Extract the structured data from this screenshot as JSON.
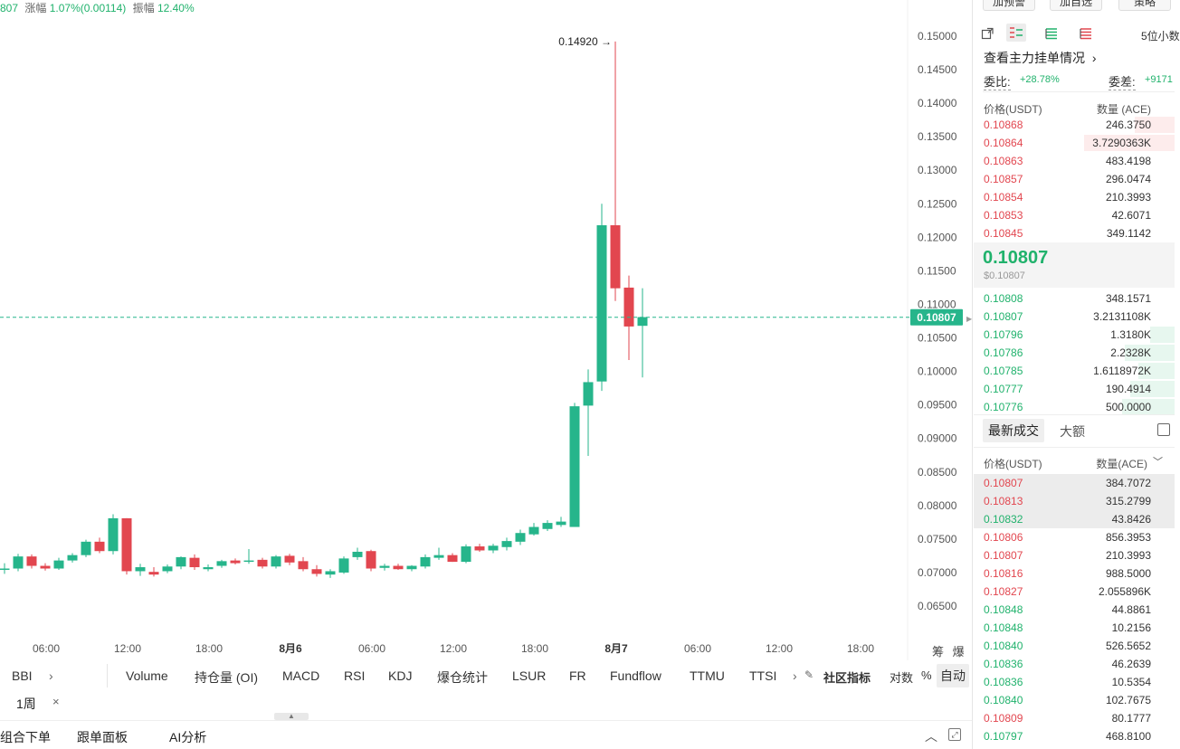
{
  "top_info": {
    "price_fragment": "807",
    "change_label": "涨幅",
    "change_value": "1.07%(0.00114)",
    "amplitude_label": "振幅",
    "amplitude_value": "12.40%"
  },
  "chart_data": {
    "type": "candlestick",
    "y_ticks": [
      "0.15000",
      "0.14500",
      "0.14000",
      "0.13500",
      "0.13000",
      "0.12500",
      "0.12000",
      "0.11500",
      "0.11000",
      "0.10500",
      "0.10000",
      "0.09500",
      "0.09000",
      "0.08500",
      "0.08000",
      "0.07500",
      "0.07000",
      "0.06500"
    ],
    "ylim": [
      0.0625,
      0.1522
    ],
    "x_ticks": [
      "06:00",
      "12:00",
      "18:00",
      "8月6",
      "06:00",
      "12:00",
      "18:00",
      "8月7",
      "06:00",
      "12:00",
      "18:00"
    ],
    "bold_x_ticks": [
      "8月6",
      "8月7"
    ],
    "last_price_label": "0.10807",
    "high_marker": "0.14920",
    "candles": [
      {
        "o": 0.0704,
        "h": 0.0714,
        "l": 0.0698,
        "c": 0.0706
      },
      {
        "o": 0.0706,
        "h": 0.0728,
        "l": 0.0702,
        "c": 0.0724
      },
      {
        "o": 0.0724,
        "h": 0.0727,
        "l": 0.0706,
        "c": 0.071
      },
      {
        "o": 0.071,
        "h": 0.0714,
        "l": 0.0703,
        "c": 0.0706
      },
      {
        "o": 0.0706,
        "h": 0.0722,
        "l": 0.0704,
        "c": 0.0718
      },
      {
        "o": 0.0718,
        "h": 0.0729,
        "l": 0.0715,
        "c": 0.0726
      },
      {
        "o": 0.0726,
        "h": 0.0749,
        "l": 0.0723,
        "c": 0.0746
      },
      {
        "o": 0.0746,
        "h": 0.0752,
        "l": 0.0729,
        "c": 0.0732
      },
      {
        "o": 0.0732,
        "h": 0.0787,
        "l": 0.0727,
        "c": 0.0781
      },
      {
        "o": 0.0781,
        "h": 0.0781,
        "l": 0.0697,
        "c": 0.0702
      },
      {
        "o": 0.0702,
        "h": 0.0713,
        "l": 0.0695,
        "c": 0.0708
      },
      {
        "o": 0.0701,
        "h": 0.0708,
        "l": 0.0694,
        "c": 0.0697
      },
      {
        "o": 0.0702,
        "h": 0.0712,
        "l": 0.0699,
        "c": 0.0709
      },
      {
        "o": 0.0709,
        "h": 0.0724,
        "l": 0.0705,
        "c": 0.0723
      },
      {
        "o": 0.0722,
        "h": 0.0727,
        "l": 0.0704,
        "c": 0.0708
      },
      {
        "o": 0.0705,
        "h": 0.0712,
        "l": 0.0702,
        "c": 0.0708
      },
      {
        "o": 0.071,
        "h": 0.0719,
        "l": 0.0707,
        "c": 0.0717
      },
      {
        "o": 0.0718,
        "h": 0.0721,
        "l": 0.0712,
        "c": 0.0714
      },
      {
        "o": 0.0716,
        "h": 0.0735,
        "l": 0.0713,
        "c": 0.0718
      },
      {
        "o": 0.0719,
        "h": 0.0722,
        "l": 0.0706,
        "c": 0.0709
      },
      {
        "o": 0.0709,
        "h": 0.0726,
        "l": 0.0706,
        "c": 0.0724
      },
      {
        "o": 0.0725,
        "h": 0.0728,
        "l": 0.0711,
        "c": 0.0715
      },
      {
        "o": 0.0717,
        "h": 0.0723,
        "l": 0.0702,
        "c": 0.0705
      },
      {
        "o": 0.0705,
        "h": 0.0711,
        "l": 0.0694,
        "c": 0.0698
      },
      {
        "o": 0.0697,
        "h": 0.0705,
        "l": 0.0692,
        "c": 0.0702
      },
      {
        "o": 0.07,
        "h": 0.0724,
        "l": 0.0698,
        "c": 0.0721
      },
      {
        "o": 0.0723,
        "h": 0.0737,
        "l": 0.0719,
        "c": 0.0731
      },
      {
        "o": 0.0732,
        "h": 0.0734,
        "l": 0.0702,
        "c": 0.0706
      },
      {
        "o": 0.0707,
        "h": 0.0713,
        "l": 0.0703,
        "c": 0.071
      },
      {
        "o": 0.071,
        "h": 0.0713,
        "l": 0.0704,
        "c": 0.0705
      },
      {
        "o": 0.0705,
        "h": 0.0711,
        "l": 0.0702,
        "c": 0.071
      },
      {
        "o": 0.0709,
        "h": 0.0727,
        "l": 0.0706,
        "c": 0.0723
      },
      {
        "o": 0.0722,
        "h": 0.0737,
        "l": 0.0719,
        "c": 0.0726
      },
      {
        "o": 0.0726,
        "h": 0.0729,
        "l": 0.0716,
        "c": 0.0716
      },
      {
        "o": 0.0716,
        "h": 0.0742,
        "l": 0.0714,
        "c": 0.0739
      },
      {
        "o": 0.0739,
        "h": 0.0743,
        "l": 0.0731,
        "c": 0.0733
      },
      {
        "o": 0.0733,
        "h": 0.0743,
        "l": 0.0729,
        "c": 0.074
      },
      {
        "o": 0.0738,
        "h": 0.0752,
        "l": 0.0733,
        "c": 0.0747
      },
      {
        "o": 0.0746,
        "h": 0.0764,
        "l": 0.0741,
        "c": 0.0759
      },
      {
        "o": 0.0757,
        "h": 0.0774,
        "l": 0.0755,
        "c": 0.0768
      },
      {
        "o": 0.0765,
        "h": 0.0778,
        "l": 0.0762,
        "c": 0.0774
      },
      {
        "o": 0.0771,
        "h": 0.0783,
        "l": 0.0768,
        "c": 0.0776
      },
      {
        "o": 0.0768,
        "h": 0.0953,
        "l": 0.0768,
        "c": 0.0948
      },
      {
        "o": 0.0949,
        "h": 0.1003,
        "l": 0.0874,
        "c": 0.0984
      },
      {
        "o": 0.0985,
        "h": 0.125,
        "l": 0.0971,
        "c": 0.1218
      },
      {
        "o": 0.1218,
        "h": 0.1492,
        "l": 0.1105,
        "c": 0.1124
      },
      {
        "o": 0.1125,
        "h": 0.1143,
        "l": 0.1017,
        "c": 0.1067
      },
      {
        "o": 0.1068,
        "h": 0.1124,
        "l": 0.0991,
        "c": 0.1081
      }
    ],
    "grid": false
  },
  "axis_corner": [
    "筹",
    "爆"
  ],
  "indicators": [
    "BBI",
    "Volume",
    "持仓量 (OI)",
    "MACD",
    "RSI",
    "KDJ",
    "爆仓统计",
    "LSUR",
    "FR",
    "Fundflow",
    "TTMU",
    "TTSI"
  ],
  "indicator_extra": {
    "community": "社区指标",
    "log": "对数",
    "pct": "%",
    "auto": "自动"
  },
  "period": {
    "label": "1周",
    "close": "×"
  },
  "bottom_tabs": [
    "组合下单",
    "跟单面板",
    "AI分析"
  ],
  "panel": {
    "top_buttons": [
      "加预警",
      "加自选",
      "策略"
    ],
    "decimals": "5位小数",
    "main_orders": "查看主力挂单情况",
    "bid_ratio_label": "委比:",
    "bid_ratio": "+28.78%",
    "bid_diff_label": "委差:",
    "bid_diff": "+9171",
    "ob_header": {
      "price": "价格(USDT)",
      "qty": "数量 (ACE)"
    },
    "asks": [
      {
        "price": "0.10868",
        "qty": "246.3750",
        "depth": 0.2
      },
      {
        "price": "0.10864",
        "qty": "3.7290363K",
        "depth": 0.45
      },
      {
        "price": "0.10863",
        "qty": "483.4198",
        "depth": 0
      },
      {
        "price": "0.10857",
        "qty": "296.0474",
        "depth": 0
      },
      {
        "price": "0.10854",
        "qty": "210.3993",
        "depth": 0
      },
      {
        "price": "0.10853",
        "qty": "42.6071",
        "depth": 0
      },
      {
        "price": "0.10845",
        "qty": "349.1142",
        "depth": 0
      }
    ],
    "last_price": "0.10807",
    "last_price_usd": "$0.10807",
    "bids": [
      {
        "price": "0.10808",
        "qty": "348.1571",
        "depth": 0
      },
      {
        "price": "0.10807",
        "qty": "3.2131108K",
        "depth": 0
      },
      {
        "price": "0.10796",
        "qty": "1.3180K",
        "depth": 0.12
      },
      {
        "price": "0.10786",
        "qty": "2.2328K",
        "depth": 0.25
      },
      {
        "price": "0.10785",
        "qty": "1.6118972K",
        "depth": 0.18
      },
      {
        "price": "0.10777",
        "qty": "190.4914",
        "depth": 0.22
      },
      {
        "price": "0.10776",
        "qty": "500.0000",
        "depth": 0.26
      }
    ],
    "trade_tabs": [
      "最新成交",
      "大额"
    ],
    "trade_header": {
      "price": "价格(USDT)",
      "qty": "数量(ACE)"
    },
    "trades": [
      {
        "price": "0.10807",
        "qty": "384.7072",
        "side": "sell",
        "hl": true
      },
      {
        "price": "0.10813",
        "qty": "315.2799",
        "side": "sell",
        "hl": true
      },
      {
        "price": "0.10832",
        "qty": "43.8426",
        "side": "buy",
        "hl": true
      },
      {
        "price": "0.10806",
        "qty": "856.3953",
        "side": "sell",
        "hl": false
      },
      {
        "price": "0.10807",
        "qty": "210.3993",
        "side": "sell",
        "hl": false
      },
      {
        "price": "0.10816",
        "qty": "988.5000",
        "side": "sell",
        "hl": false
      },
      {
        "price": "0.10827",
        "qty": "2.055896K",
        "side": "sell",
        "hl": false
      },
      {
        "price": "0.10848",
        "qty": "44.8861",
        "side": "buy",
        "hl": false
      },
      {
        "price": "0.10848",
        "qty": "10.2156",
        "side": "buy",
        "hl": false
      },
      {
        "price": "0.10840",
        "qty": "526.5652",
        "side": "buy",
        "hl": false
      },
      {
        "price": "0.10836",
        "qty": "46.2639",
        "side": "buy",
        "hl": false
      },
      {
        "price": "0.10836",
        "qty": "10.5354",
        "side": "buy",
        "hl": false
      },
      {
        "price": "0.10840",
        "qty": "102.7675",
        "side": "buy",
        "hl": false
      },
      {
        "price": "0.10809",
        "qty": "80.1777",
        "side": "sell",
        "hl": false
      },
      {
        "price": "0.10797",
        "qty": "468.8100",
        "side": "buy",
        "hl": false
      }
    ]
  },
  "colors": {
    "up": "#26b58b",
    "down": "#e2464f",
    "up_text": "#20b26c",
    "down_text": "#e2464f"
  }
}
